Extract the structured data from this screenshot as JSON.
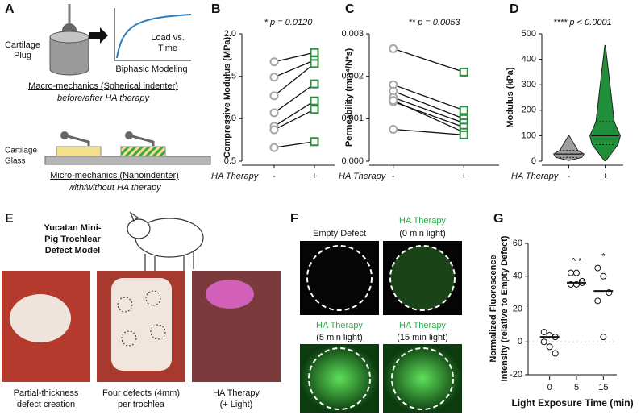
{
  "figure": {
    "panel_a": {
      "letter": "A",
      "plug": [
        "Cartilage",
        "Plug"
      ],
      "curve": [
        "Load vs.",
        "Time"
      ],
      "model": "Biphasic Modeling",
      "macro": "Macro-mechanics (Spherical indenter)",
      "macro_sub": "before/after HA therapy",
      "cartilage": "Cartilage",
      "glass": "Glass",
      "micro": "Micro-mechanics (Nanoindenter)",
      "micro_sub": "with/without HA therapy"
    },
    "panel_e": {
      "letter": "E",
      "model": [
        "Yucatan Mini-",
        "Pig Trochlear",
        "Defect Model"
      ],
      "captions": [
        [
          "Partial-thickness",
          "defect creation"
        ],
        [
          "Four defects (4mm)",
          "per trochlea"
        ],
        [
          "HA Therapy",
          "(+ Light)"
        ]
      ]
    },
    "panel_f": {
      "letter": "F",
      "labels": [
        [
          "Empty Defect"
        ],
        [
          "HA Therapy",
          "(0 min light)"
        ],
        [
          "HA Therapy",
          "(5 min light)"
        ],
        [
          "HA Therapy",
          "(15 min light)"
        ]
      ]
    }
  },
  "chart_data": [
    {
      "type": "paired",
      "label": "B",
      "title": "* p = 0.0120",
      "ylabel": "Compressive Modulus (MPa)",
      "xlabel": "HA Therapy",
      "categories": [
        "-",
        "+"
      ],
      "colors": [
        "#a6a6a6",
        "#2e8b3e"
      ],
      "pairs": [
        [
          1.67,
          1.78
        ],
        [
          1.49,
          1.69
        ],
        [
          1.27,
          1.65
        ],
        [
          1.07,
          1.41
        ],
        [
          0.91,
          1.21
        ],
        [
          0.87,
          1.11
        ],
        [
          0.66,
          0.73
        ]
      ],
      "ylim": [
        0.5,
        2.0
      ],
      "yticks": [
        {
          "value": 0.5,
          "label": "0.5"
        },
        {
          "value": 1.0,
          "label": "1.0"
        },
        {
          "value": 1.5,
          "label": "1.5"
        },
        {
          "value": 2.0,
          "label": "2.0"
        }
      ]
    },
    {
      "type": "paired",
      "label": "C",
      "title": "** p = 0.0053",
      "ylabel": "Permeability (mm⁴/N*s)",
      "xlabel": "HA Therapy",
      "categories": [
        "-",
        "+"
      ],
      "colors": [
        "#a6a6a6",
        "#2e8b3e"
      ],
      "pairs": [
        [
          0.00265,
          0.0021
        ],
        [
          0.0018,
          0.0012
        ],
        [
          0.00165,
          0.001
        ],
        [
          0.0015,
          0.0009
        ],
        [
          0.0014,
          0.0008
        ],
        [
          0.00143,
          0.00068
        ],
        [
          0.00075,
          0.00062
        ]
      ],
      "ylim": [
        0,
        0.003
      ],
      "yticks": [
        {
          "value": 0,
          "label": "0.000"
        },
        {
          "value": 0.001,
          "label": "0.001"
        },
        {
          "value": 0.002,
          "label": "0.002"
        },
        {
          "value": 0.003,
          "label": "0.003"
        }
      ]
    },
    {
      "type": "violin",
      "label": "D",
      "title": "**** p < 0.0001",
      "ylabel": "Modulus (kPa)",
      "xlabel": "HA Therapy",
      "categories": [
        "-",
        "+"
      ],
      "colors": [
        "#9e9e9e",
        "#1f8f3a"
      ],
      "stats": [
        {
          "min": 3,
          "q1": 15,
          "median": 28,
          "q3": 42,
          "max": 100
        },
        {
          "min": 2,
          "q1": 65,
          "median": 100,
          "q3": 155,
          "max": 455
        }
      ],
      "ylim": [
        0,
        500
      ],
      "yticks": [
        0,
        100,
        200,
        300,
        400,
        500
      ]
    },
    {
      "type": "strip",
      "label": "G",
      "ylabel": [
        "Normalized Fluorescence",
        "Intensity (relative to Empty Defect)"
      ],
      "xlabel": "Light Exposure Time (min)",
      "categories": [
        "0",
        "5",
        "15"
      ],
      "annotations": [
        null,
        "^ *",
        "*"
      ],
      "points": [
        [
          6,
          4,
          3,
          0,
          -3,
          -7
        ],
        [
          42,
          42,
          37,
          35,
          35,
          36
        ],
        [
          45,
          40,
          30,
          25,
          3
        ]
      ],
      "means": [
        3,
        36,
        31
      ],
      "ylim": [
        -20,
        60
      ],
      "yticks": [
        -20,
        0,
        20,
        40,
        60
      ]
    }
  ]
}
